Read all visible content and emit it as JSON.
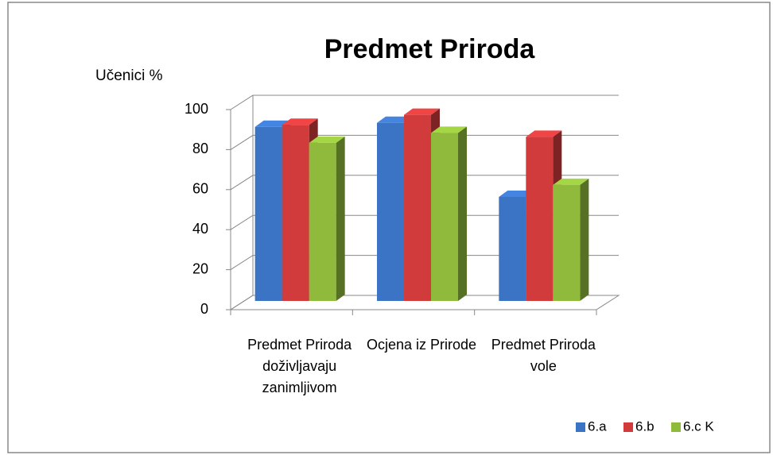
{
  "chart_data": {
    "type": "bar3d",
    "title": "Predmet Priroda",
    "y_label": "Učenici %",
    "categories": [
      "Predmet Priroda doživljavaju zanimljivom",
      "Ocjena iz Prirode",
      "Predmet Priroda vole"
    ],
    "series": [
      {
        "name": "6.a",
        "color": "#3b74c4",
        "values": [
          87,
          89,
          52
        ]
      },
      {
        "name": "6.b",
        "color": "#d23b3b",
        "values": [
          88,
          93,
          82
        ]
      },
      {
        "name": "6.c K",
        "color": "#8fba3c",
        "values": [
          79,
          84,
          58
        ]
      }
    ],
    "ylim": [
      0,
      100
    ],
    "yticks": [
      0,
      20,
      40,
      60,
      80,
      100
    ],
    "grid": true,
    "legend": "bottom-right"
  }
}
